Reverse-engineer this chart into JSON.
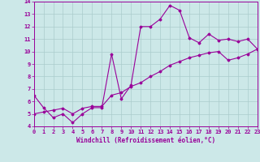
{
  "xlabel": "Windchill (Refroidissement éolien,°C)",
  "bg_color": "#cce8e8",
  "grid_color": "#aacccc",
  "line_color": "#990099",
  "xlim": [
    0,
    23
  ],
  "ylim": [
    4,
    14
  ],
  "xticks": [
    0,
    1,
    2,
    3,
    4,
    5,
    6,
    7,
    8,
    9,
    10,
    11,
    12,
    13,
    14,
    15,
    16,
    17,
    18,
    19,
    20,
    21,
    22,
    23
  ],
  "yticks": [
    4,
    5,
    6,
    7,
    8,
    9,
    10,
    11,
    12,
    13,
    14
  ],
  "series1_x": [
    0,
    1,
    2,
    3,
    4,
    5,
    6,
    7,
    8,
    9,
    10,
    11,
    12,
    13,
    14,
    15,
    16,
    17,
    18,
    19,
    20,
    21,
    22,
    23
  ],
  "series1_y": [
    6.5,
    5.5,
    4.7,
    5.0,
    4.3,
    5.0,
    5.5,
    5.5,
    9.8,
    6.2,
    7.3,
    12.0,
    12.0,
    12.6,
    13.7,
    13.3,
    11.1,
    10.7,
    11.4,
    10.9,
    11.0,
    10.8,
    11.0,
    10.2
  ],
  "series2_x": [
    0,
    1,
    2,
    3,
    4,
    5,
    6,
    7,
    8,
    9,
    10,
    11,
    12,
    13,
    14,
    15,
    16,
    17,
    18,
    19,
    20,
    21,
    22,
    23
  ],
  "series2_y": [
    5.0,
    5.15,
    5.3,
    5.45,
    5.0,
    5.45,
    5.6,
    5.6,
    6.5,
    6.7,
    7.2,
    7.5,
    8.0,
    8.4,
    8.9,
    9.2,
    9.5,
    9.7,
    9.9,
    10.0,
    9.3,
    9.5,
    9.8,
    10.2
  ]
}
